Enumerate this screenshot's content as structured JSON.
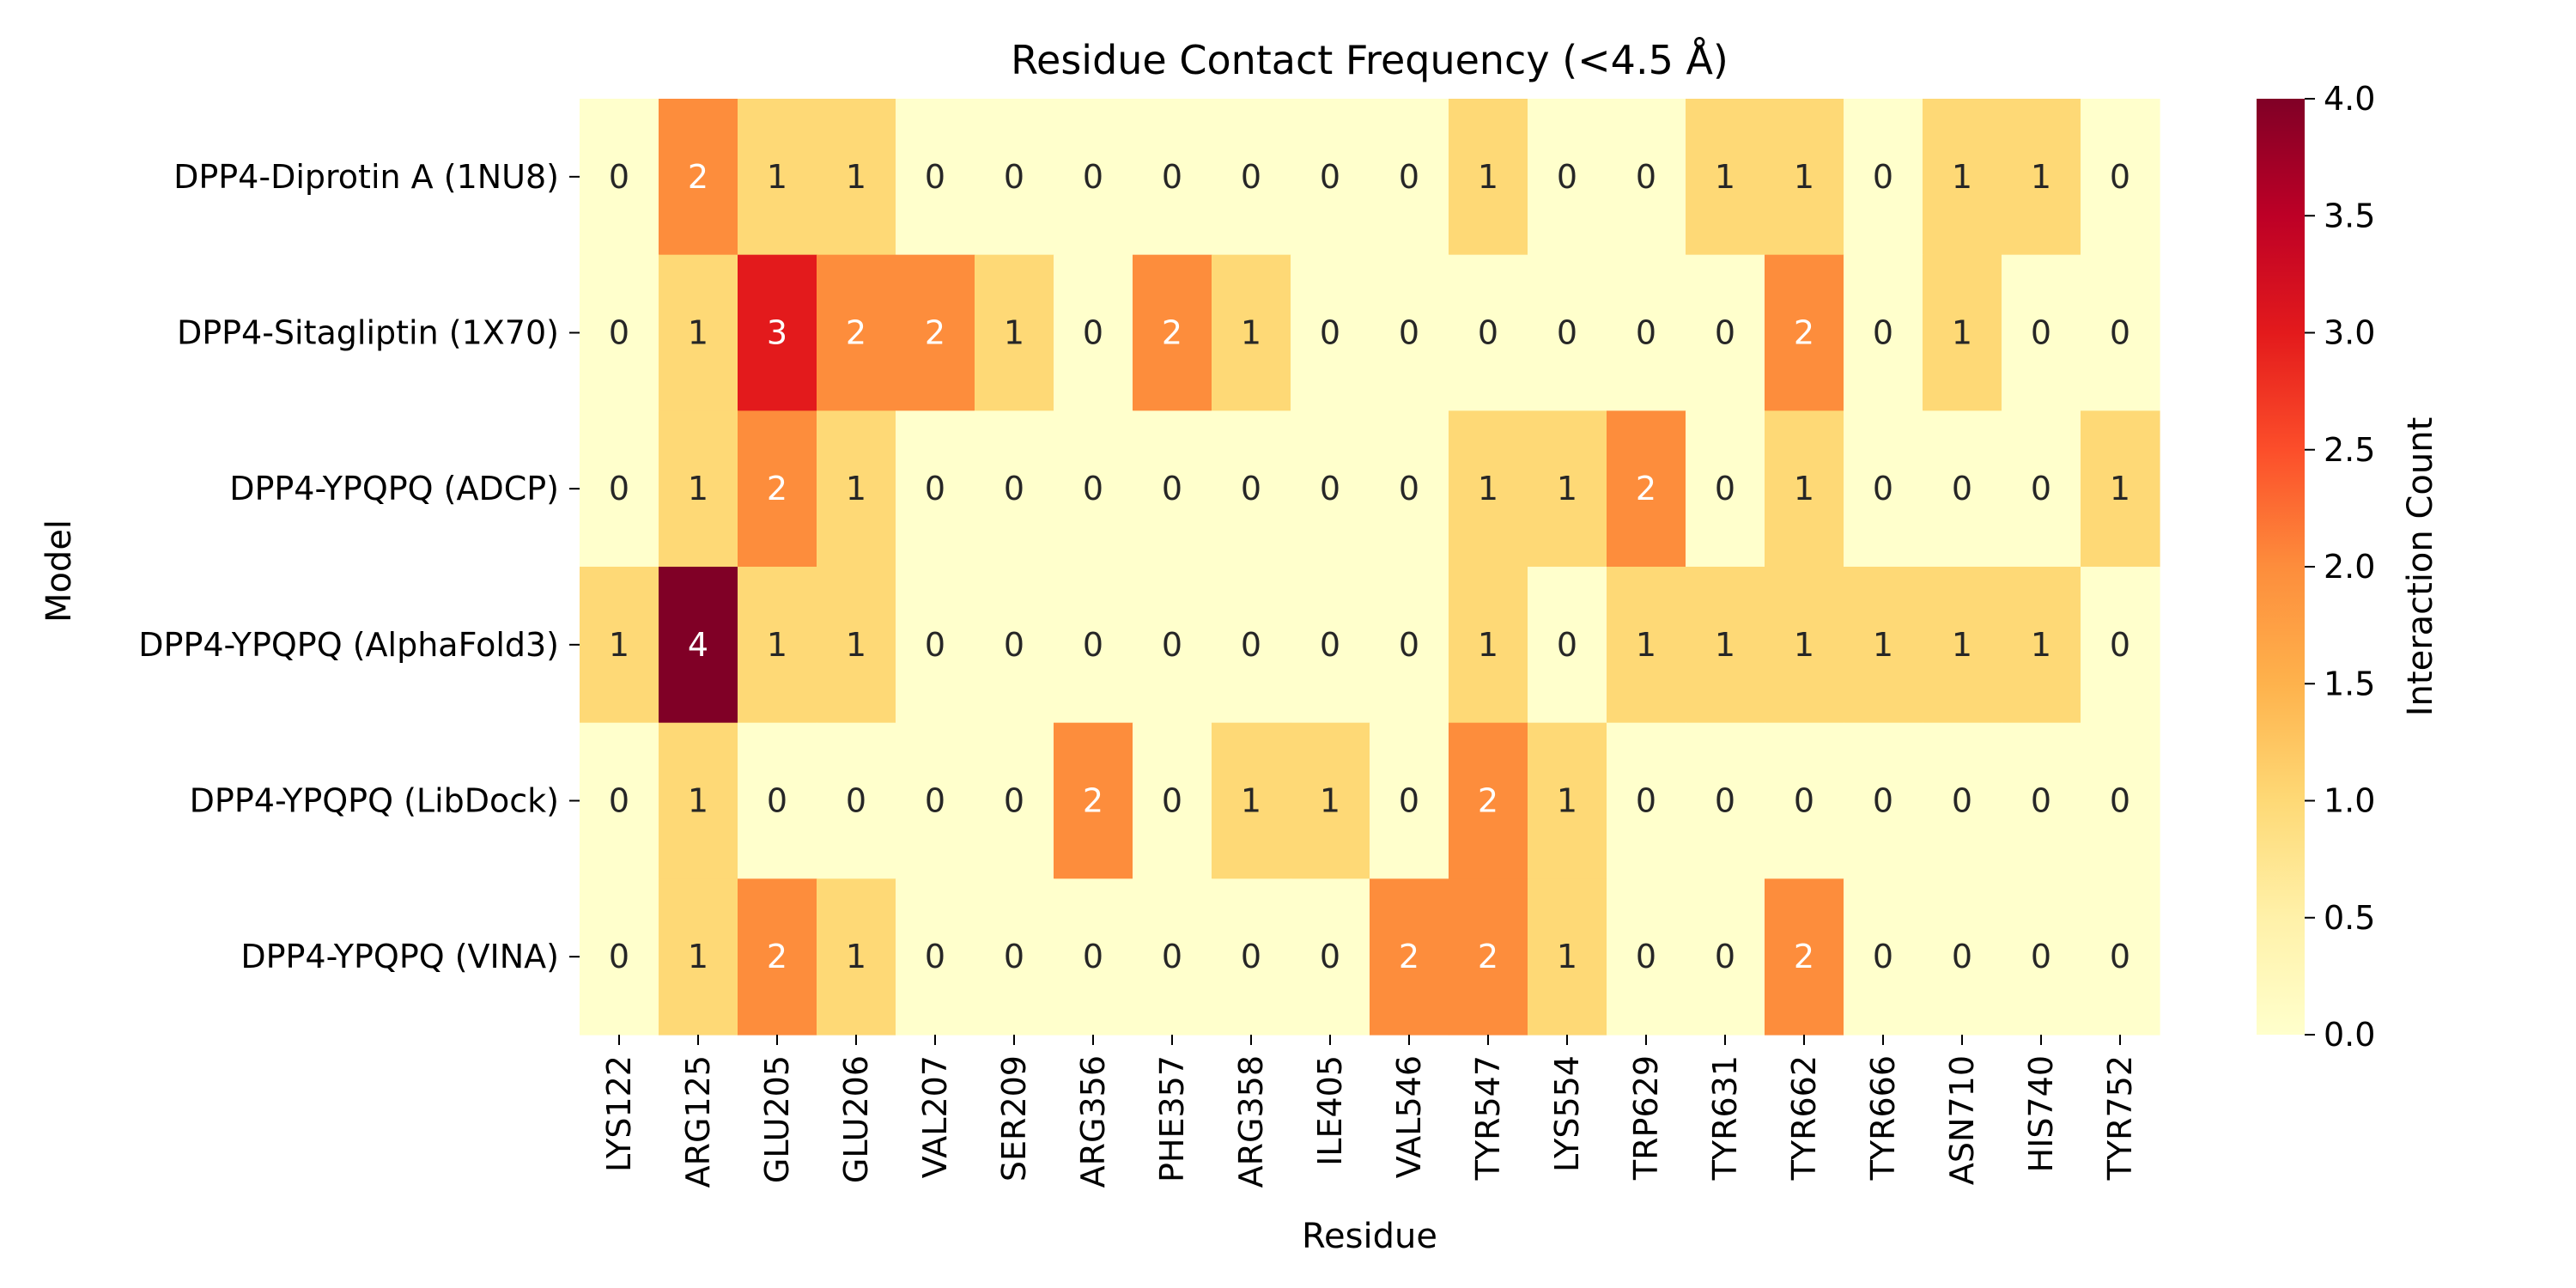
{
  "chart_data": {
    "type": "heatmap",
    "title": "Residue Contact Frequency (<4.5 Å)",
    "xlabel": "Residue",
    "ylabel": "Model",
    "colorbar_label": "Interaction Count",
    "colormap": "YlOrRd",
    "vmin": 0,
    "vmax": 4,
    "colorbar_ticks": [
      "0.0",
      "0.5",
      "1.0",
      "1.5",
      "2.0",
      "2.5",
      "3.0",
      "3.5",
      "4.0"
    ],
    "x_categories": [
      "LYS122",
      "ARG125",
      "GLU205",
      "GLU206",
      "VAL207",
      "SER209",
      "ARG356",
      "PHE357",
      "ARG358",
      "ILE405",
      "VAL546",
      "TYR547",
      "LYS554",
      "TRP629",
      "TYR631",
      "TYR662",
      "TYR666",
      "ASN710",
      "HIS740",
      "TYR752"
    ],
    "y_categories": [
      "DPP4-Diprotin A (1NU8)",
      "DPP4-Sitagliptin (1X70)",
      "DPP4-YPQPQ (ADCP)",
      "DPP4-YPQPQ (AlphaFold3)",
      "DPP4-YPQPQ (LibDock)",
      "DPP4-YPQPQ (VINA)"
    ],
    "values": [
      [
        0,
        2,
        1,
        1,
        0,
        0,
        0,
        0,
        0,
        0,
        0,
        1,
        0,
        0,
        1,
        1,
        0,
        1,
        1,
        0
      ],
      [
        0,
        1,
        3,
        2,
        2,
        1,
        0,
        2,
        1,
        0,
        0,
        0,
        0,
        0,
        0,
        2,
        0,
        1,
        0,
        0
      ],
      [
        0,
        1,
        2,
        1,
        0,
        0,
        0,
        0,
        0,
        0,
        0,
        1,
        1,
        2,
        0,
        1,
        0,
        0,
        0,
        1
      ],
      [
        1,
        4,
        1,
        1,
        0,
        0,
        0,
        0,
        0,
        0,
        0,
        1,
        0,
        1,
        1,
        1,
        1,
        1,
        1,
        0
      ],
      [
        0,
        1,
        0,
        0,
        0,
        0,
        2,
        0,
        1,
        1,
        0,
        2,
        1,
        0,
        0,
        0,
        0,
        0,
        0,
        0
      ],
      [
        0,
        1,
        2,
        1,
        0,
        0,
        0,
        0,
        0,
        0,
        2,
        2,
        1,
        0,
        0,
        2,
        0,
        0,
        0,
        0
      ]
    ],
    "colors": {
      "0": "#ffffcc",
      "1": "#fed976",
      "2": "#fd8d3c",
      "3": "#e31a1c",
      "4": "#800026"
    }
  }
}
